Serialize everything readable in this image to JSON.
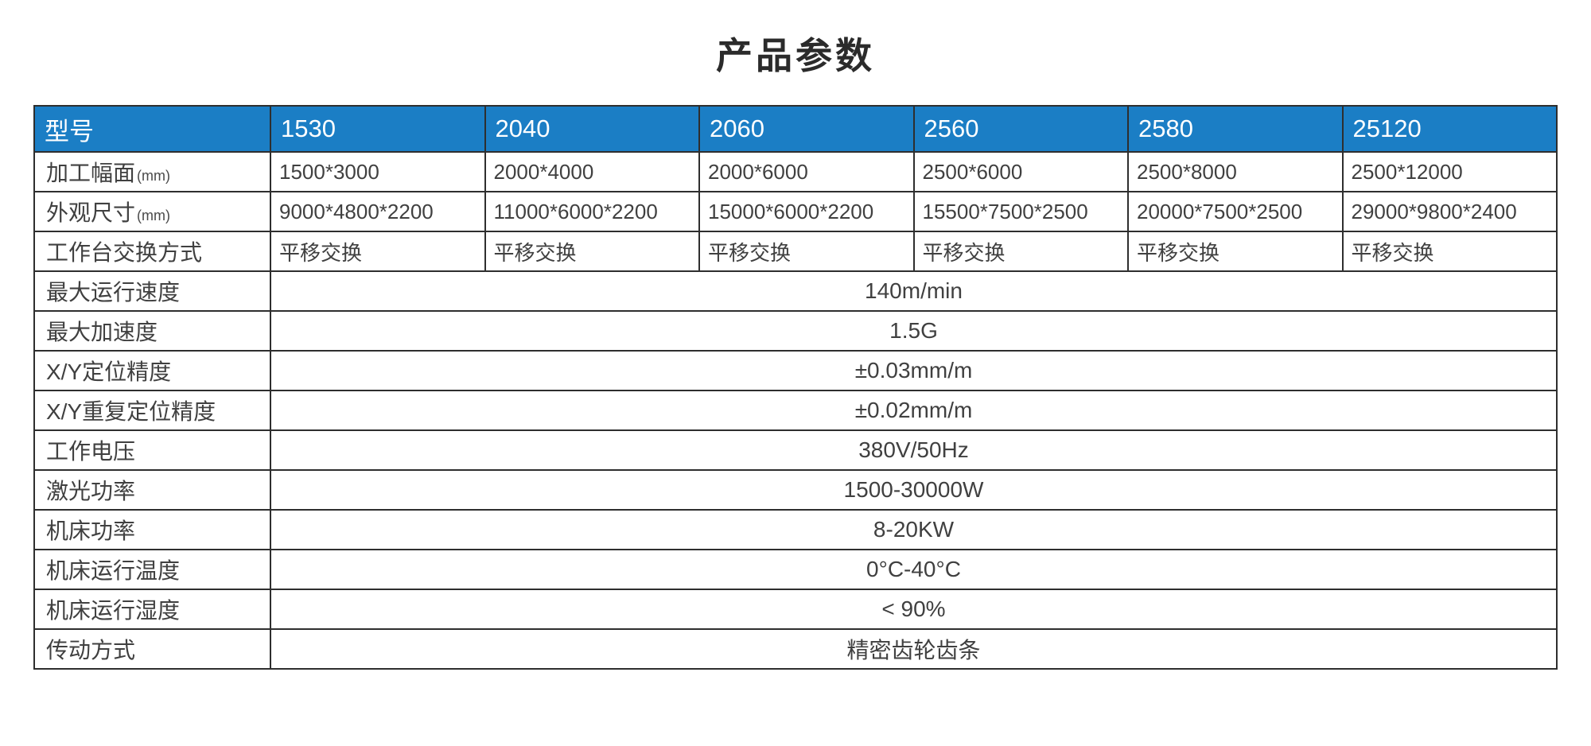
{
  "colors": {
    "header_bg": "#1b7ec5",
    "header_text": "#ffffff",
    "border_color": "#2e2e2e",
    "body_text": "#404040",
    "title_text": "#2b2b2b"
  },
  "page": {
    "title": "产品参数"
  },
  "table": {
    "header": {
      "label": "型号",
      "models": [
        "1530",
        "2040",
        "2060",
        "2560",
        "2580",
        "25120"
      ]
    },
    "rows": [
      {
        "label": "加工幅面",
        "unit": "(mm)",
        "values": [
          "1500*3000",
          "2000*4000",
          "2000*6000",
          "2500*6000",
          "2500*8000",
          "2500*12000"
        ]
      },
      {
        "label": "外观尺寸",
        "unit": "(mm)",
        "values": [
          "9000*4800*2200",
          "11000*6000*2200",
          "15000*6000*2200",
          "15500*7500*2500",
          "20000*7500*2500",
          "29000*9800*2400"
        ]
      },
      {
        "label": "工作台交换方式",
        "unit": "",
        "values": [
          "平移交换",
          "平移交换",
          "平移交换",
          "平移交换",
          "平移交换",
          "平移交换"
        ]
      }
    ],
    "merged_rows": [
      {
        "label": "最大运行速度",
        "value": "140m/min"
      },
      {
        "label": "最大加速度",
        "value": "1.5G"
      },
      {
        "label": "X/Y定位精度",
        "value": "±0.03mm/m"
      },
      {
        "label": "X/Y重复定位精度",
        "value": "±0.02mm/m"
      },
      {
        "label": "工作电压",
        "value": "380V/50Hz"
      },
      {
        "label": "激光功率",
        "value": "1500-30000W"
      },
      {
        "label": "机床功率",
        "value": "8-20KW"
      },
      {
        "label": "机床运行温度",
        "value": "0°C-40°C"
      },
      {
        "label": "机床运行湿度",
        "value": "< 90%"
      },
      {
        "label": "传动方式",
        "value": "精密齿轮齿条"
      }
    ]
  }
}
